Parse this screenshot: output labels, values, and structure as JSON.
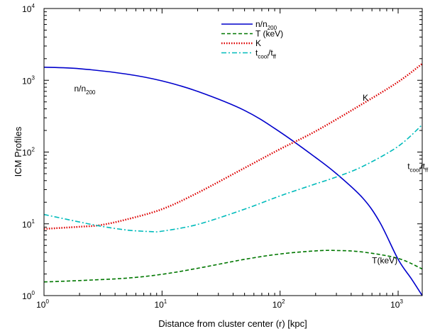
{
  "chart_data": {
    "type": "line",
    "title": "",
    "xlabel": "Distance from cluster center (r) [kpc]",
    "ylabel": "ICM Profiles",
    "xscale": "log",
    "yscale": "log",
    "xlim": [
      1,
      1600
    ],
    "ylim": [
      1,
      10000
    ],
    "grid": false,
    "legend_position": "top-center",
    "x_ticks": [
      {
        "value": 1,
        "base": "10",
        "exp": "0"
      },
      {
        "value": 10,
        "base": "10",
        "exp": "1"
      },
      {
        "value": 100,
        "base": "10",
        "exp": "2"
      },
      {
        "value": 1000,
        "base": "10",
        "exp": "3"
      }
    ],
    "y_ticks": [
      {
        "value": 1,
        "base": "10",
        "exp": "0"
      },
      {
        "value": 10,
        "base": "10",
        "exp": "1"
      },
      {
        "value": 100,
        "base": "10",
        "exp": "2"
      },
      {
        "value": 1000,
        "base": "10",
        "exp": "3"
      },
      {
        "value": 10000,
        "base": "10",
        "exp": "4"
      }
    ],
    "series": [
      {
        "name": "n/n200",
        "legend_main": "n/n",
        "legend_sub": "200",
        "color": "#0000cc",
        "dash": "solid",
        "points": [
          [
            1,
            1520
          ],
          [
            2,
            1450
          ],
          [
            5,
            1220
          ],
          [
            10,
            980
          ],
          [
            20,
            700
          ],
          [
            50,
            380
          ],
          [
            100,
            190
          ],
          [
            200,
            84
          ],
          [
            300,
            50
          ],
          [
            500,
            23
          ],
          [
            700,
            10.5
          ],
          [
            1000,
            3.2
          ],
          [
            1300,
            1.7
          ],
          [
            1600,
            1.0
          ]
        ]
      },
      {
        "name": "T (keV)",
        "legend_main": "T (keV)",
        "legend_sub": "",
        "color": "#007700",
        "dash": "dashed",
        "points": [
          [
            1,
            1.55
          ],
          [
            2,
            1.62
          ],
          [
            5,
            1.75
          ],
          [
            10,
            1.98
          ],
          [
            20,
            2.4
          ],
          [
            50,
            3.2
          ],
          [
            100,
            3.8
          ],
          [
            200,
            4.2
          ],
          [
            300,
            4.25
          ],
          [
            500,
            4.05
          ],
          [
            1000,
            3.3
          ],
          [
            1600,
            2.35
          ]
        ]
      },
      {
        "name": "K",
        "legend_main": "K",
        "legend_sub": "",
        "color": "#dd0000",
        "dash": "dotted",
        "points": [
          [
            1,
            8.5
          ],
          [
            2,
            9.1
          ],
          [
            3,
            9.6
          ],
          [
            5,
            11.5
          ],
          [
            10,
            16
          ],
          [
            20,
            27
          ],
          [
            50,
            60
          ],
          [
            100,
            110
          ],
          [
            200,
            195
          ],
          [
            500,
            470
          ],
          [
            1000,
            950
          ],
          [
            1600,
            1700
          ]
        ]
      },
      {
        "name": "tcool/tff",
        "legend_main": "t",
        "legend_sub": "cool",
        "legend_main2": "/t",
        "legend_sub2": "ff",
        "color": "#00bbbb",
        "dash": "dashdot",
        "points": [
          [
            1,
            13.5
          ],
          [
            2,
            10.6
          ],
          [
            3,
            9.3
          ],
          [
            5,
            8.2
          ],
          [
            8,
            7.8
          ],
          [
            10,
            7.9
          ],
          [
            20,
            9.8
          ],
          [
            50,
            16
          ],
          [
            100,
            24.5
          ],
          [
            200,
            36
          ],
          [
            300,
            45
          ],
          [
            500,
            63
          ],
          [
            1000,
            120
          ],
          [
            1600,
            240
          ]
        ]
      }
    ],
    "annotations": [
      {
        "main": "n/n",
        "sub": "200",
        "x": 1.8,
        "y": 700
      },
      {
        "main": "K",
        "sub": "",
        "x": 500,
        "y": 520
      },
      {
        "main": "t",
        "sub": "cool",
        "main2": "/t",
        "sub2": "ff",
        "x": 1200,
        "y": 58
      },
      {
        "main": "T(keV)",
        "sub": "",
        "x": 600,
        "y": 2.8
      }
    ]
  }
}
